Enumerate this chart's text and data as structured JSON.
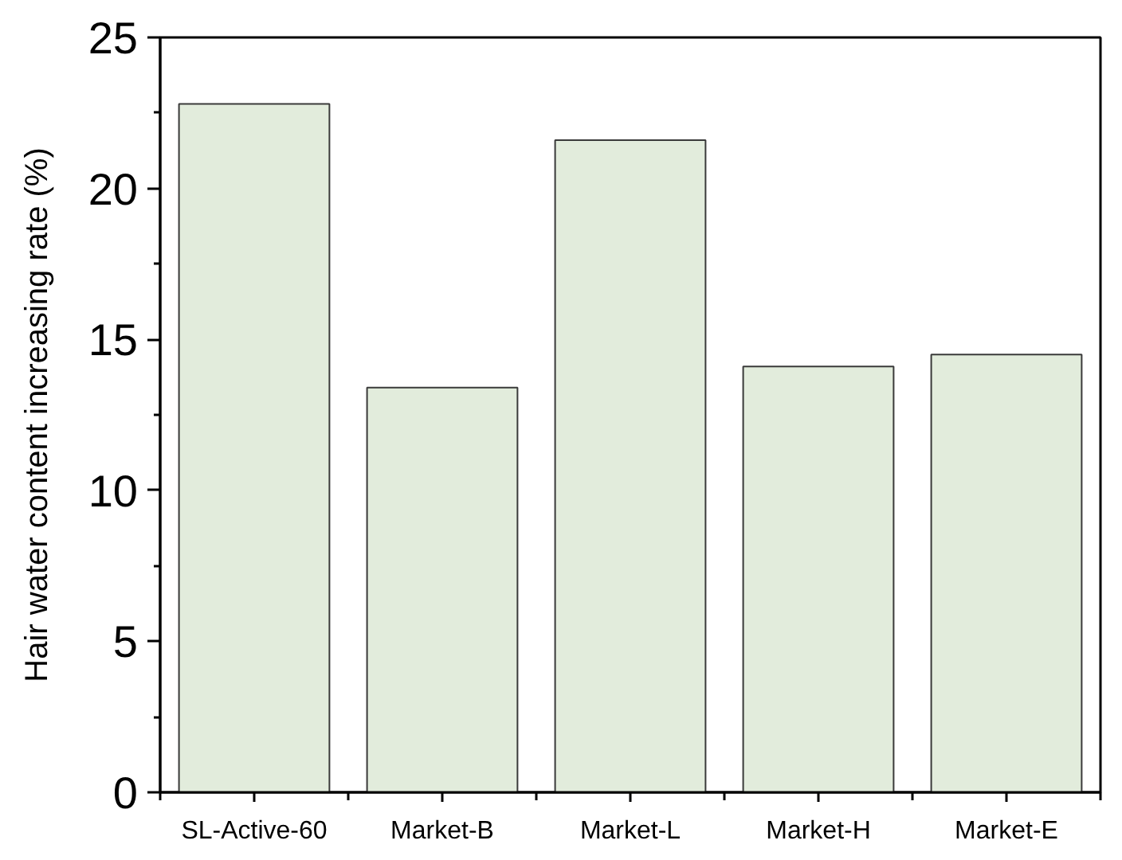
{
  "chart_data": {
    "type": "bar",
    "ylabel": "Hair water content increasing rate (%)",
    "categories": [
      "SL-Active-60",
      "Market-B",
      "Market-L",
      "Market-H",
      "Market-E"
    ],
    "values": [
      22.8,
      13.4,
      21.6,
      14.1,
      14.5
    ],
    "color": "#e2ecdc",
    "ylim": [
      0,
      25
    ],
    "yticks": [
      0,
      {
        "value": 2.5,
        "label": null
      },
      5,
      {
        "value": 7.5,
        "label": null
      },
      10,
      {
        "value": 12.5,
        "label": null
      },
      15,
      {
        "value": 17.5,
        "label": null
      },
      20,
      {
        "value": 22.5,
        "label": null
      },
      25
    ]
  }
}
